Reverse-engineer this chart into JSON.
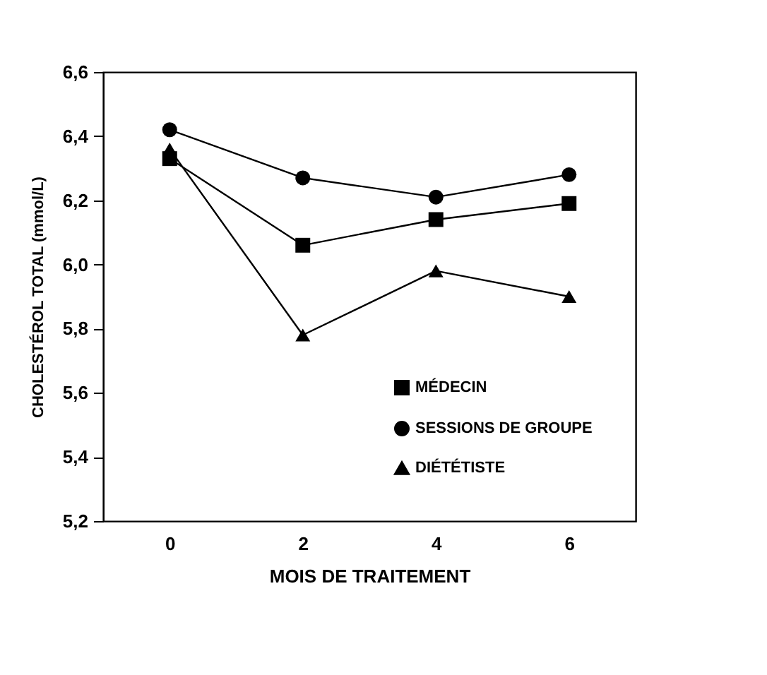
{
  "chart_data": {
    "type": "line",
    "xlabel": "MOIS DE TRAITEMENT",
    "ylabel": "CHOLESTÉROL TOTAL (mmol/L)",
    "categories": [
      "0",
      "2",
      "4",
      "6"
    ],
    "series": [
      {
        "name": "MÉDECIN",
        "color": "#000000",
        "marker": "square",
        "values": [
          6.33,
          6.06,
          6.14,
          6.19
        ]
      },
      {
        "name": "SESSIONS DE GROUPE",
        "color": "#000000",
        "marker": "circle",
        "values": [
          6.42,
          6.27,
          6.21,
          6.28
        ]
      },
      {
        "name": "DIÉTÉTISTE",
        "color": "#000000",
        "marker": "triangle",
        "values": [
          6.36,
          5.78,
          5.98,
          5.9
        ]
      }
    ],
    "ylim": [
      5.2,
      6.6
    ],
    "yticks": [
      {
        "value": 5.2,
        "label": "5,2"
      },
      {
        "value": 5.4,
        "label": "5,4"
      },
      {
        "value": 5.6,
        "label": "5,6"
      },
      {
        "value": 5.8,
        "label": "5,8"
      },
      {
        "value": 6.0,
        "label": "6,0"
      },
      {
        "value": 6.2,
        "label": "6,2"
      },
      {
        "value": 6.4,
        "label": "6,4"
      },
      {
        "value": 6.6,
        "label": "6,6"
      }
    ],
    "legend": "bottom right",
    "line_style": "solid"
  }
}
